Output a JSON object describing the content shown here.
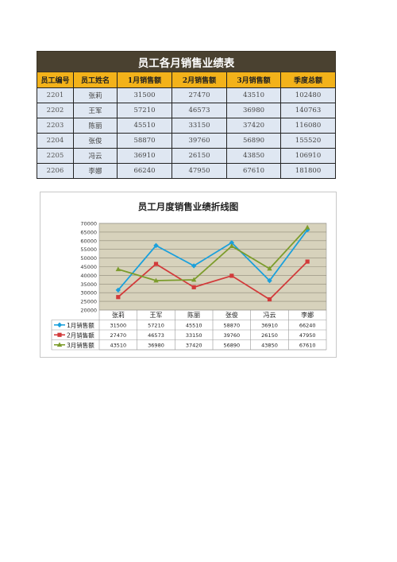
{
  "sheet": {
    "title": "员工各月销售业绩表",
    "headers": [
      "员工编号",
      "员工姓名",
      "1月销售额",
      "2月销售额",
      "3月销售额",
      "季度总额"
    ],
    "rows": [
      [
        "2201",
        "张莉",
        "31500",
        "27470",
        "43510",
        "102480"
      ],
      [
        "2202",
        "王军",
        "57210",
        "46573",
        "36980",
        "140763"
      ],
      [
        "2203",
        "陈丽",
        "45510",
        "33150",
        "37420",
        "116080"
      ],
      [
        "2204",
        "张俊",
        "58870",
        "39760",
        "56890",
        "155520"
      ],
      [
        "2205",
        "冯云",
        "36910",
        "26150",
        "43850",
        "106910"
      ],
      [
        "2206",
        "李娜",
        "66240",
        "47950",
        "67610",
        "181800"
      ]
    ]
  },
  "chart_data": {
    "type": "line",
    "title": "员工月度销售业绩折线图",
    "categories": [
      "张莉",
      "王军",
      "陈丽",
      "张俊",
      "冯云",
      "李娜"
    ],
    "ylim": [
      20000,
      70000
    ],
    "yticks": [
      "70000",
      "65000",
      "60000",
      "55000",
      "50000",
      "45000",
      "40000",
      "35000",
      "30000",
      "25000",
      "20000"
    ],
    "grid": true,
    "legend": "data-table-left",
    "series": [
      {
        "name": "1月销售额",
        "color": "#1aa0dc",
        "marker": "diamond",
        "values": [
          31500,
          57210,
          45510,
          58870,
          36910,
          66240
        ],
        "labels": [
          "31500",
          "57210",
          "45510",
          "58870",
          "36910",
          "66240"
        ]
      },
      {
        "name": "2月销售额",
        "color": "#d23a3a",
        "marker": "square",
        "values": [
          27470,
          46573,
          33150,
          39760,
          26150,
          47950
        ],
        "labels": [
          "27470",
          "46573",
          "33150",
          "39760",
          "26150",
          "47950"
        ]
      },
      {
        "name": "3月销售额",
        "color": "#7c9c2c",
        "marker": "triangle",
        "values": [
          43510,
          36980,
          37420,
          56890,
          43850,
          67610
        ],
        "labels": [
          "43510",
          "36980",
          "37420",
          "56890",
          "43850",
          "67610"
        ]
      }
    ]
  }
}
